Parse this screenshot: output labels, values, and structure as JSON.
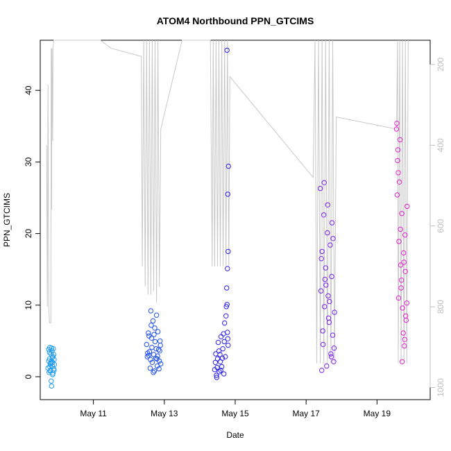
{
  "chart_data": {
    "type": "scatter",
    "title": "ATOM4 Northbound PPN_GTCIMS",
    "xlabel": "Date",
    "ylabel": "PPN_GTCIMS",
    "x_ticks": [
      "May 11",
      "May 13",
      "May 15",
      "May 17",
      "May 19"
    ],
    "x_tick_values": [
      11,
      13,
      15,
      17,
      19
    ],
    "xlim": [
      9.5,
      20.5
    ],
    "y_ticks": [
      0,
      10,
      20,
      30,
      40
    ],
    "ylim": [
      -3.2,
      47
    ],
    "y2_ticks": [
      200,
      400,
      600,
      800,
      1000
    ],
    "y2lim": [
      1030,
      140
    ],
    "y2_reversed": true,
    "grid": false,
    "marker": "open-circle",
    "depth_line_color": "#c8c8c8",
    "series": [
      {
        "color": "#1e9bf0",
        "x": [
          9.72,
          9.74,
          9.75,
          9.76,
          9.77,
          9.78,
          9.79,
          9.8,
          9.81,
          9.82,
          9.83,
          9.84,
          9.85,
          9.86,
          9.87,
          9.88,
          9.89,
          9.9,
          9.74,
          9.76,
          9.78,
          9.8,
          9.82,
          9.84,
          9.86,
          9.88,
          9.77,
          9.81,
          9.85,
          9.89
        ],
        "y": [
          1.2,
          3.8,
          0.6,
          2.5,
          4.1,
          1.8,
          0.9,
          3.2,
          2.1,
          -1.3,
          3.6,
          1.5,
          0.3,
          2.8,
          3.9,
          1.1,
          2.4,
          1.7,
          2.2,
          3.4,
          0.8,
          1.9,
          4.0,
          2.7,
          0.5,
          3.1,
          1.4,
          -0.6,
          2.0,
          0.9
        ]
      },
      {
        "color": "#1f4ff0",
        "x": [
          12.5,
          12.52,
          12.55,
          12.58,
          12.6,
          12.62,
          12.64,
          12.66,
          12.68,
          12.7,
          12.72,
          12.74,
          12.76,
          12.78,
          12.8,
          12.82,
          12.84,
          12.86,
          12.88,
          12.9,
          12.53,
          12.57,
          12.61,
          12.65,
          12.69,
          12.73,
          12.77,
          12.81,
          12.85,
          12.89,
          12.56,
          12.63,
          12.71,
          12.79,
          12.87
        ],
        "y": [
          4.5,
          2.8,
          6.1,
          3.5,
          1.2,
          9.2,
          5.4,
          2.0,
          7.8,
          3.1,
          0.8,
          4.9,
          2.6,
          8.6,
          1.5,
          6.3,
          3.8,
          2.2,
          5.0,
          1.8,
          3.3,
          5.7,
          2.4,
          4.1,
          0.6,
          6.8,
          3.9,
          2.9,
          1.1,
          4.4,
          3.0,
          7.2,
          5.9,
          2.5,
          3.6
        ]
      },
      {
        "color": "#2a1ff0",
        "x": [
          14.42,
          14.45,
          14.48,
          14.5,
          14.52,
          14.55,
          14.58,
          14.6,
          14.62,
          14.65,
          14.68,
          14.7,
          14.72,
          14.75,
          14.78,
          14.8,
          14.44,
          14.49,
          14.54,
          14.59,
          14.64,
          14.69,
          14.74,
          14.79,
          14.47,
          14.57,
          14.67,
          14.77,
          14.76,
          14.78,
          14.8,
          14.79,
          14.81,
          14.77
        ],
        "y": [
          1.0,
          3.2,
          -0.1,
          2.5,
          4.8,
          0.7,
          2.1,
          5.6,
          1.4,
          3.9,
          0.4,
          7.5,
          2.8,
          9.8,
          6.2,
          4.4,
          2.0,
          1.3,
          3.6,
          0.9,
          2.6,
          4.9,
          8.5,
          5.3,
          0.2,
          3.1,
          6.0,
          10.1,
          12.4,
          15.1,
          17.5,
          25.5,
          29.4,
          45.6
        ]
      },
      {
        "color": "#7a1ff0",
        "x": [
          17.4,
          17.42,
          17.45,
          17.48,
          17.5,
          17.52,
          17.55,
          17.58,
          17.6,
          17.62,
          17.65,
          17.68,
          17.7,
          17.72,
          17.75,
          17.78,
          17.8,
          17.43,
          17.47,
          17.51,
          17.56,
          17.61,
          17.66,
          17.71,
          17.76,
          17.44,
          17.53,
          17.63,
          17.73,
          17.79
        ],
        "y": [
          26.3,
          12.0,
          17.5,
          4.5,
          22.6,
          9.8,
          15.2,
          1.5,
          20.1,
          11.3,
          7.6,
          18.4,
          3.2,
          14.0,
          5.8,
          2.1,
          9.0,
          16.5,
          6.4,
          27.1,
          12.8,
          24.0,
          10.5,
          2.8,
          19.3,
          0.9,
          13.6,
          8.2,
          21.5,
          4.0
        ]
      },
      {
        "color": "#e61fcf",
        "x": [
          19.55,
          19.58,
          19.6,
          19.62,
          19.65,
          19.68,
          19.7,
          19.72,
          19.75,
          19.78,
          19.8,
          19.82,
          19.85,
          19.57,
          19.61,
          19.66,
          19.71,
          19.76,
          19.81,
          19.56,
          19.63,
          19.69,
          19.74,
          19.79,
          19.84,
          19.59,
          19.67,
          19.77
        ],
        "y": [
          34.6,
          30.2,
          28.5,
          18.9,
          33.1,
          12.4,
          22.8,
          9.6,
          17.3,
          5.2,
          14.7,
          7.9,
          23.8,
          25.4,
          11.0,
          20.6,
          2.1,
          16.0,
          8.5,
          35.4,
          27.2,
          13.5,
          6.1,
          19.8,
          10.3,
          31.7,
          15.6,
          4.3
        ]
      }
    ],
    "depth_series": {
      "y2_axis": true,
      "points": [
        [
          9.68,
          400
        ],
        [
          9.7,
          800
        ],
        [
          9.72,
          250
        ],
        [
          9.74,
          800
        ],
        [
          9.76,
          840
        ],
        [
          9.8,
          840
        ],
        [
          9.81,
          160
        ],
        [
          9.82,
          560
        ],
        [
          9.83,
          160
        ],
        [
          9.85,
          390
        ],
        [
          9.86,
          160
        ],
        [
          9.88,
          130
        ],
        [
          11.2,
          140
        ],
        [
          11.5,
          160
        ],
        [
          12.35,
          180
        ],
        [
          12.38,
          700
        ],
        [
          12.42,
          140
        ],
        [
          12.46,
          750
        ],
        [
          12.5,
          140
        ],
        [
          12.54,
          770
        ],
        [
          12.58,
          140
        ],
        [
          12.62,
          770
        ],
        [
          12.66,
          140
        ],
        [
          12.7,
          760
        ],
        [
          12.74,
          140
        ],
        [
          12.78,
          790
        ],
        [
          12.82,
          140
        ],
        [
          12.86,
          750
        ],
        [
          12.9,
          360
        ],
        [
          13.5,
          140
        ],
        [
          14.3,
          140
        ],
        [
          14.35,
          700
        ],
        [
          14.38,
          140
        ],
        [
          14.42,
          700
        ],
        [
          14.46,
          140
        ],
        [
          14.5,
          700
        ],
        [
          14.54,
          140
        ],
        [
          14.58,
          700
        ],
        [
          14.62,
          140
        ],
        [
          14.66,
          700
        ],
        [
          14.7,
          140
        ],
        [
          14.74,
          700
        ],
        [
          14.78,
          140
        ],
        [
          14.82,
          700
        ],
        [
          14.85,
          230
        ],
        [
          17.2,
          480
        ],
        [
          17.25,
          140
        ],
        [
          17.3,
          940
        ],
        [
          17.35,
          140
        ],
        [
          17.4,
          940
        ],
        [
          17.45,
          140
        ],
        [
          17.5,
          940
        ],
        [
          17.55,
          140
        ],
        [
          17.6,
          940
        ],
        [
          17.65,
          140
        ],
        [
          17.7,
          940
        ],
        [
          17.75,
          140
        ],
        [
          17.8,
          940
        ],
        [
          17.85,
          330
        ],
        [
          19.55,
          360
        ],
        [
          19.58,
          140
        ],
        [
          19.6,
          940
        ],
        [
          19.64,
          140
        ],
        [
          19.68,
          940
        ],
        [
          19.72,
          140
        ],
        [
          19.76,
          940
        ],
        [
          19.8,
          140
        ],
        [
          19.84,
          940
        ],
        [
          19.88,
          140
        ]
      ]
    }
  }
}
